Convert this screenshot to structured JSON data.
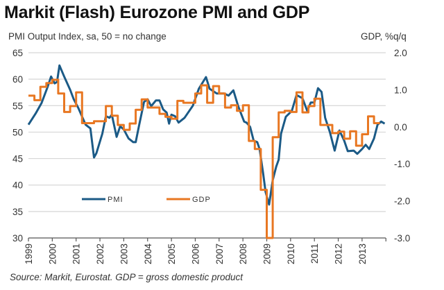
{
  "chart_data": {
    "type": "line",
    "title": "Markit (Flash) Eurozone PMI and GDP",
    "ylabel_left": "PMI Output Index, sa, 50 = no change",
    "ylabel_right": "GDP, %q/q",
    "source": "Source: Markit, Eurostat. GDP = gross domestic product",
    "xlim": [
      1999,
      2014
    ],
    "x_tick_labels": [
      "1999",
      "2000",
      "2001",
      "2002",
      "2003",
      "2004",
      "2005",
      "2006",
      "2007",
      "2008",
      "2009",
      "2010",
      "2011",
      "2012",
      "2013"
    ],
    "ylim_left": [
      30,
      65
    ],
    "y_ticks_left": [
      "30",
      "35",
      "40",
      "45",
      "50",
      "55",
      "60",
      "65"
    ],
    "ylim_right": [
      -3.0,
      2.0
    ],
    "y_ticks_right": [
      "-3.0",
      "-2.0",
      "-1.0",
      "0.0",
      "1.0",
      "2.0"
    ],
    "grid": true,
    "legend_placement": "lower-left",
    "series": [
      {
        "name": "PMI",
        "axis": "left",
        "color": "#1B5A86",
        "style": "line",
        "x": [
          1999.0,
          1999.3,
          1999.55,
          1999.8,
          1999.95,
          2000.1,
          2000.2,
          2000.3,
          2000.5,
          2000.75,
          2000.9,
          2001.1,
          2001.4,
          2001.6,
          2001.75,
          2001.85,
          2002.1,
          2002.25,
          2002.4,
          2002.5,
          2002.7,
          2002.85,
          2003.0,
          2003.2,
          2003.4,
          2003.5,
          2003.65,
          2003.85,
          2004.0,
          2004.15,
          2004.35,
          2004.5,
          2004.65,
          2004.8,
          2004.9,
          2005.0,
          2005.15,
          2005.3,
          2005.55,
          2005.9,
          2006.15,
          2006.45,
          2006.6,
          2006.9,
          2007.2,
          2007.4,
          2007.6,
          2007.8,
          2008.05,
          2008.15,
          2008.3,
          2008.45,
          2008.6,
          2008.7,
          2008.85,
          2008.95,
          2009.1,
          2009.25,
          2009.4,
          2009.5,
          2009.6,
          2009.8,
          2010.05,
          2010.25,
          2010.5,
          2010.7,
          2010.85,
          2011.0,
          2011.15,
          2011.3,
          2011.45,
          2011.65,
          2011.85,
          2012.05,
          2012.25,
          2012.4,
          2012.65,
          2012.8,
          2013.0,
          2013.15,
          2013.3,
          2013.5,
          2013.65,
          2013.8,
          2013.95
        ],
        "values": [
          51.4,
          53.5,
          55.5,
          58.5,
          60.5,
          59.2,
          59.5,
          62.6,
          60.5,
          58.0,
          56.2,
          54.5,
          51.4,
          50.7,
          45.2,
          46.0,
          49.7,
          53.0,
          52.7,
          53.3,
          49.1,
          51.1,
          50.5,
          48.8,
          48.1,
          48.1,
          51.4,
          55.7,
          56.2,
          54.9,
          56.0,
          56.0,
          54.3,
          53.7,
          51.6,
          53.3,
          53.0,
          51.8,
          52.7,
          55.0,
          58.2,
          60.4,
          58.2,
          57.3,
          57.3,
          56.9,
          57.9,
          54.9,
          52.0,
          51.8,
          51.0,
          48.4,
          48.1,
          46.8,
          42.2,
          38.7,
          36.3,
          40.9,
          43.5,
          44.8,
          49.7,
          52.9,
          54.0,
          57.0,
          56.4,
          54.0,
          55.6,
          55.6,
          58.3,
          57.6,
          52.7,
          50.0,
          46.5,
          50.3,
          48.4,
          46.4,
          46.5,
          45.9,
          46.8,
          47.6,
          46.8,
          48.8,
          51.4,
          52.0,
          51.6
        ]
      },
      {
        "name": "GDP",
        "axis": "right",
        "color": "#E87722",
        "style": "step-quarterly",
        "quarters": [
          "1999Q1",
          "1999Q2",
          "1999Q3",
          "1999Q4",
          "2000Q1",
          "2000Q2",
          "2000Q3",
          "2000Q4",
          "2001Q1",
          "2001Q2",
          "2001Q3",
          "2001Q4",
          "2002Q1",
          "2002Q2",
          "2002Q3",
          "2002Q4",
          "2003Q1",
          "2003Q2",
          "2003Q3",
          "2003Q4",
          "2004Q1",
          "2004Q2",
          "2004Q3",
          "2004Q4",
          "2005Q1",
          "2005Q2",
          "2005Q3",
          "2005Q4",
          "2006Q1",
          "2006Q2",
          "2006Q3",
          "2006Q4",
          "2007Q1",
          "2007Q2",
          "2007Q3",
          "2007Q4",
          "2008Q1",
          "2008Q2",
          "2008Q3",
          "2008Q4",
          "2009Q1",
          "2009Q2",
          "2009Q3",
          "2009Q4",
          "2010Q1",
          "2010Q2",
          "2010Q3",
          "2010Q4",
          "2011Q1",
          "2011Q2",
          "2011Q3",
          "2011Q4",
          "2012Q1",
          "2012Q2",
          "2012Q3",
          "2012Q4",
          "2013Q1",
          "2013Q2",
          "2013Q3"
        ],
        "values": [
          0.84,
          0.72,
          1.08,
          1.18,
          1.27,
          0.9,
          0.4,
          0.56,
          0.93,
          0.1,
          0.1,
          0.15,
          0.15,
          0.56,
          0.3,
          0.05,
          -0.08,
          0.09,
          0.46,
          0.74,
          0.52,
          0.52,
          0.35,
          0.27,
          0.22,
          0.7,
          0.65,
          0.65,
          0.9,
          1.12,
          0.65,
          1.1,
          0.9,
          0.52,
          0.58,
          0.43,
          0.58,
          -0.38,
          -0.6,
          -1.7,
          -3.0,
          -0.28,
          0.39,
          0.43,
          0.4,
          0.93,
          0.39,
          0.56,
          0.76,
          0.05,
          0.05,
          -0.17,
          -0.13,
          -0.32,
          -0.12,
          -0.51,
          -0.2,
          0.28,
          0.1
        ]
      }
    ]
  }
}
